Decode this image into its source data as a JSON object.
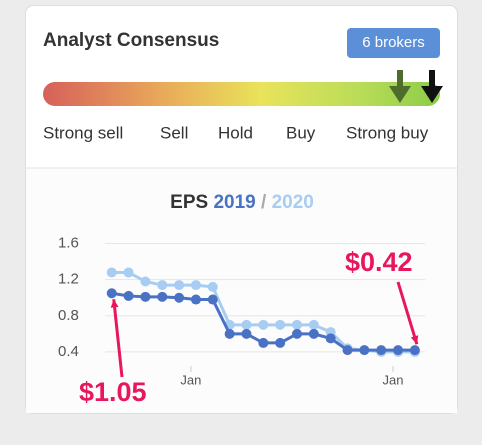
{
  "header": {
    "title": "Analyst Consensus",
    "badge": "6 brokers"
  },
  "consensus": {
    "labels": [
      "Strong sell",
      "Sell",
      "Hold",
      "Buy",
      "Strong buy"
    ]
  },
  "chart_data": {
    "type": "line",
    "title": "EPS",
    "title_separator": "/",
    "x": [
      0,
      1,
      2,
      3,
      4,
      5,
      6,
      7,
      8,
      9,
      10,
      11,
      12,
      13,
      14,
      15,
      16,
      17,
      18
    ],
    "xlim": [
      -0.4,
      18.6
    ],
    "xticks": [
      {
        "value": 4.7,
        "label": "Jan"
      },
      {
        "value": 16.7,
        "label": "Jan"
      }
    ],
    "ylim": [
      0.2,
      1.75
    ],
    "yticks": [
      0.4,
      0.8,
      1.2,
      1.6
    ],
    "grid": true,
    "series": [
      {
        "name": "2019",
        "color": "#4a72c4",
        "values": [
          1.05,
          1.02,
          1.01,
          1.01,
          1.0,
          0.98,
          0.98,
          0.6,
          0.6,
          0.5,
          0.5,
          0.6,
          0.6,
          0.55,
          0.42,
          0.42,
          0.42,
          0.42,
          0.42
        ]
      },
      {
        "name": "2020",
        "color": "#a8cdf2",
        "values": [
          1.28,
          1.28,
          1.18,
          1.14,
          1.14,
          1.14,
          1.12,
          0.7,
          0.7,
          0.7,
          0.7,
          0.7,
          0.7,
          0.62,
          0.44,
          0.42,
          0.4,
          0.4,
          0.4
        ]
      }
    ],
    "annotations": [
      "$1.05",
      "$0.42"
    ]
  }
}
